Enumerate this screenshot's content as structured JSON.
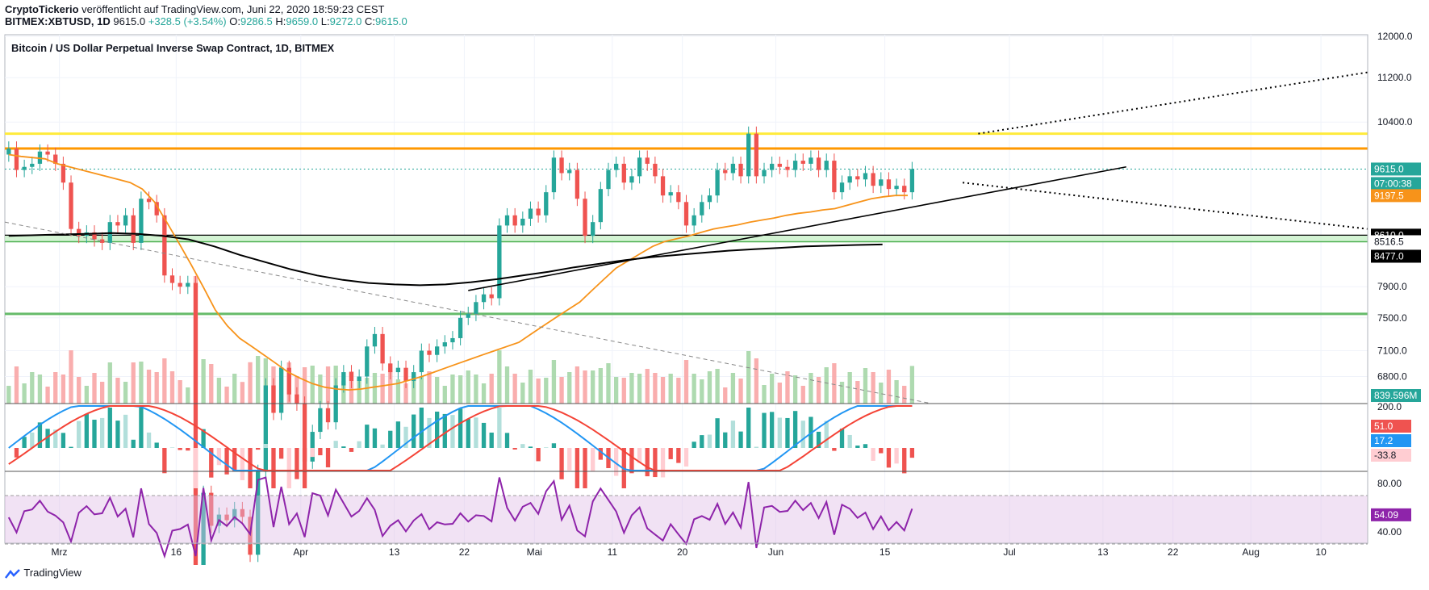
{
  "header": {
    "line1_brand": "CryptoTickerio",
    "line1_rest": " veröffentlicht auf TradingView.com, Juni 22, 2020 18:59:23 CEST",
    "symbol": "BITMEX:XBTUSD, 1D",
    "last": "9615.0",
    "change": "+328.5 (+3.54%)",
    "ohlc": [
      {
        "k": "O:",
        "v": "9286.5"
      },
      {
        "k": "H:",
        "v": "9659.0"
      },
      {
        "k": "L:",
        "v": "9272.0"
      },
      {
        "k": "C:",
        "v": "9615.0"
      }
    ]
  },
  "footer": {
    "brand": "TradingView"
  },
  "chart_data": {
    "type": "candlestick",
    "title": "Bitcoin / US Dollar Perpetual Inverse Swap Contract, 1D, BITMEX",
    "price_scale": "log",
    "ylim": [
      6500,
      12000
    ],
    "price_ticks": [
      "12000.0",
      "11200.0",
      "10400.0",
      "7900.0",
      "7500.0",
      "7100.0",
      "6800.0"
    ],
    "price_tag_labels": [
      "9615.0",
      "07:00:38",
      "9197.5",
      "8610.0",
      "8516.5",
      "8477.0",
      "839.596M"
    ],
    "x_ticks": [
      "Mrz",
      "16",
      "Apr",
      "13",
      "22",
      "Mai",
      "11",
      "20",
      "Jun",
      "15",
      "Jul",
      "13",
      "22",
      "Aug",
      "10"
    ],
    "x_tick_dates": [
      "2020-03-01",
      "2020-03-16",
      "2020-04-01",
      "2020-04-13",
      "2020-04-22",
      "2020-05-01",
      "2020-05-11",
      "2020-05-20",
      "2020-06-01",
      "2020-06-15",
      "2020-07-01",
      "2020-07-13",
      "2020-07-22",
      "2020-08-01",
      "2020-08-10"
    ],
    "start_date": "2020-02-23",
    "end_date": "2020-08-16",
    "candle_close": [
      9950,
      9600,
      9650,
      9700,
      9900,
      9850,
      9700,
      9400,
      8700,
      8600,
      8650,
      8550,
      8500,
      8800,
      8750,
      8900,
      8500,
      9150,
      9100,
      8900,
      8050,
      7950,
      7900,
      7950,
      4800,
      5600,
      5300,
      5400,
      5350,
      5450,
      5380,
      5050,
      5800,
      6700,
      6400,
      6900,
      6600,
      6500,
      5900,
      6200,
      6450,
      6300,
      6700,
      6850,
      6750,
      6800,
      7150,
      7300,
      6950,
      6850,
      6900,
      6750,
      6850,
      7100,
      7050,
      7150,
      7200,
      7250,
      7500,
      7550,
      7700,
      7800,
      7750,
      8750,
      8900,
      8750,
      8850,
      9000,
      8900,
      9250,
      9800,
      9550,
      9600,
      9150,
      8600,
      8800,
      9300,
      9600,
      9700,
      9400,
      9500,
      9800,
      9700,
      9500,
      9200,
      9250,
      9100,
      8750,
      8900,
      9100,
      9200,
      9600,
      9550,
      9700,
      9500,
      10200,
      9500,
      9600,
      9700,
      9650,
      9600,
      9750,
      9700,
      9800,
      9600,
      9750,
      9250,
      9400,
      9500,
      9450,
      9550,
      9350,
      9450,
      9300,
      9350,
      9250,
      9615
    ],
    "ma_fast": [
      9850,
      9820,
      9800,
      9780,
      9700,
      9650,
      9600,
      9550,
      9500,
      9450,
      9400,
      9300,
      9100,
      8800,
      8500,
      8200,
      7900,
      7600,
      7400,
      7250,
      7150,
      7050,
      6950,
      6850,
      6780,
      6720,
      6680,
      6660,
      6650,
      6660,
      6680,
      6700,
      6720,
      6760,
      6800,
      6850,
      6900,
      6950,
      7000,
      7050,
      7100,
      7150,
      7200,
      7300,
      7400,
      7500,
      7600,
      7700,
      7850,
      8000,
      8150,
      8250,
      8350,
      8450,
      8520,
      8560,
      8600,
      8650,
      8700,
      8730,
      8760,
      8800,
      8830,
      8860,
      8900,
      8930,
      8950,
      8980,
      9000,
      9050,
      9100,
      9150,
      9180,
      9200,
      9200
    ],
    "ma_slow": [
      8600,
      8610,
      8620,
      8630,
      8640,
      8630,
      8600,
      8550,
      8450,
      8330,
      8230,
      8130,
      8050,
      7990,
      7950,
      7930,
      7920,
      7930,
      7960,
      8000,
      8050,
      8100,
      8160,
      8210,
      8260,
      8300,
      8330,
      8360,
      8390,
      8410,
      8430,
      8450,
      8460,
      8470,
      8477
    ],
    "support_bands": [
      8516.5,
      8610.0
    ],
    "horizontal_levels": [
      10200,
      9950,
      7550
    ],
    "rsi": {
      "levels": [
        "80.00",
        "40.00"
      ],
      "last": "54.09"
    },
    "macd": {
      "scale": "200.0",
      "tags": [
        "51.0",
        "17.2",
        "-33.8"
      ]
    },
    "volume_last": "839.596M"
  }
}
